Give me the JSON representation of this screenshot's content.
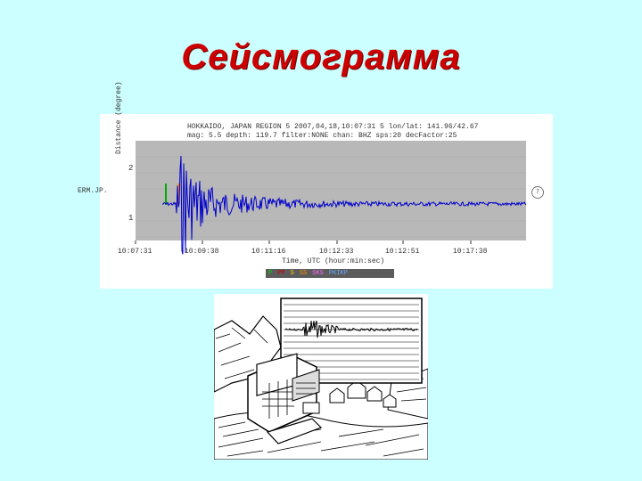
{
  "slide": {
    "title": "Сейсмограмма"
  },
  "seismogram": {
    "header_line1": "HOKKAIDO, JAPAN REGION 5 2007,04,18,10:07:31 5 lon/lat: 141.96/42.67",
    "header_line2": "mag: 5.5 depth: 119.7 filter:NONE chan: BHZ sps:20 decFactor:25",
    "y_axis_title": "Distance (degree)",
    "y_ticks": [
      "2",
      "1"
    ],
    "station_label": "ERM.JP.",
    "circle_label": "7",
    "x_ticks": [
      "10:07:31",
      "10:09:38",
      "10:11:16",
      "10:12:33",
      "10:12:51",
      "10:17:38"
    ],
    "x_label": "Time, UTC (hour:min:sec)",
    "legend": [
      "P",
      "PP",
      "S",
      "SS",
      "SKS",
      "PKIKP"
    ],
    "colors": {
      "trace": "#0000cc",
      "p_marker": "#00aa00",
      "s_marker": "#ff8800",
      "plot_bg": "#b8b8b8"
    }
  },
  "illustration": {
    "icon": "seismograph-engraving-icon"
  }
}
